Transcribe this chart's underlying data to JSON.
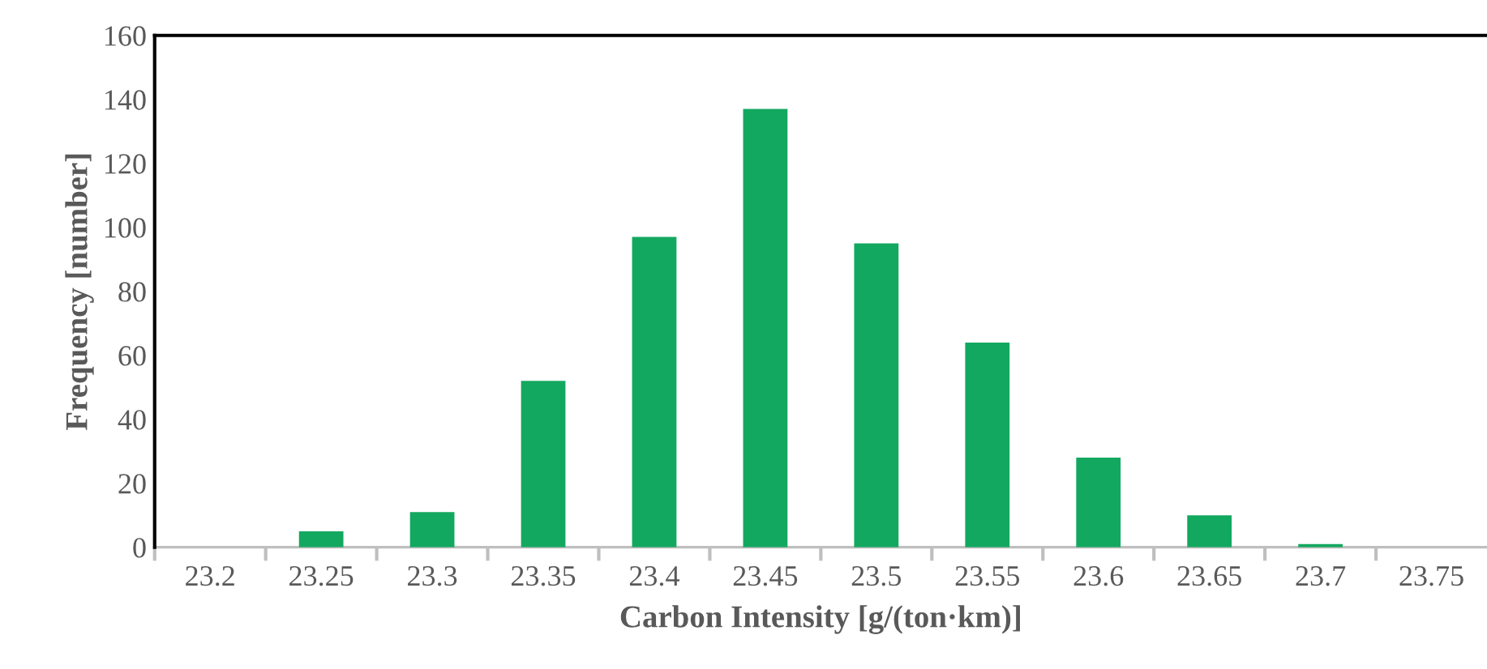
{
  "chart_data": {
    "type": "bar",
    "xlabel": "Carbon Intensity [g/(ton·km)]",
    "ylabel": "Frequency [number]",
    "categories": [
      "23.2",
      "23.25",
      "23.3",
      "23.35",
      "23.4",
      "23.45",
      "23.5",
      "23.55",
      "23.6",
      "23.65",
      "23.7",
      "23.75"
    ],
    "values": [
      0,
      5,
      11,
      52,
      97,
      137,
      95,
      64,
      28,
      10,
      1,
      0
    ],
    "color": "#13a85f",
    "ylim": [
      0,
      160
    ],
    "yticks": [
      0,
      20,
      40,
      60,
      80,
      100,
      120,
      140,
      160
    ],
    "grid": false,
    "legend": false
  }
}
